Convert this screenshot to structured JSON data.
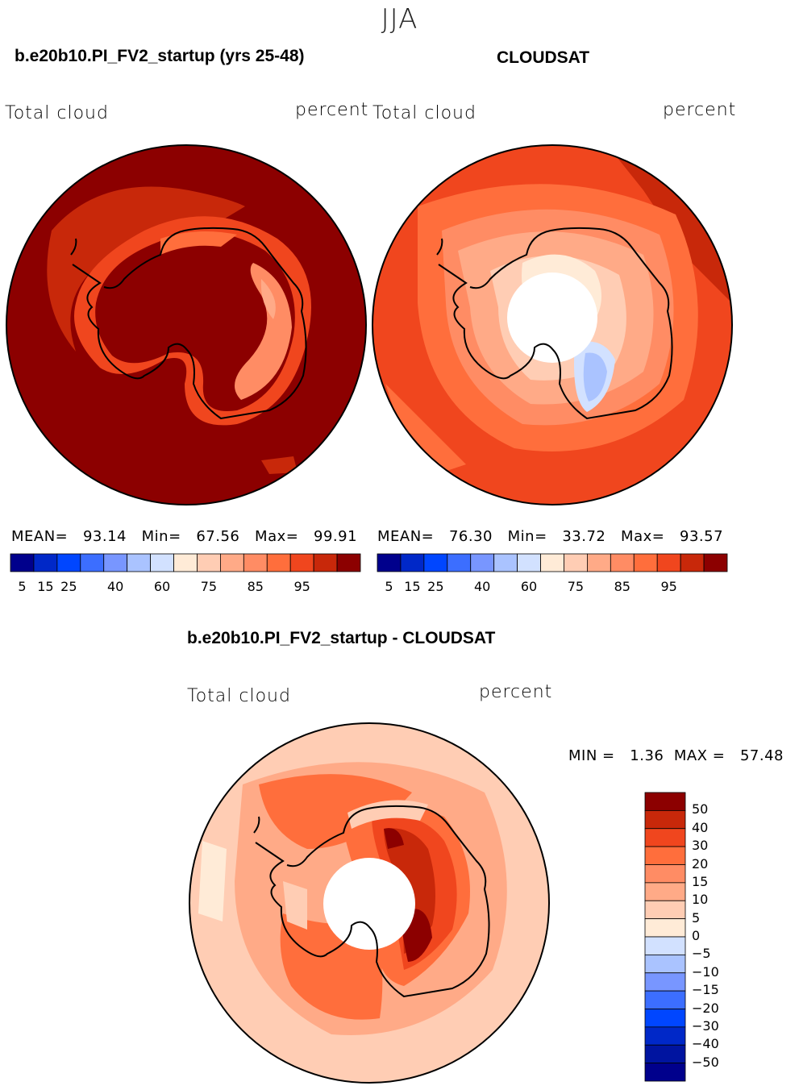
{
  "header": {
    "season": "JJA"
  },
  "chart_data": [
    {
      "type": "heatmap",
      "projection": "south-polar-stereographic",
      "case_title": "b.e20b10.PI_FV2_startup (yrs 25-48)",
      "left_label": "Total cloud",
      "right_label": "percent",
      "stats": {
        "mean_label": "MEAN=",
        "mean": "93.14",
        "min_label": "Min=",
        "min": "67.56",
        "max_label": "Max=",
        "max": "99.91"
      },
      "colorbar": {
        "colors": [
          "#00008c",
          "#0028c8",
          "#0046ff",
          "#3c6eff",
          "#7896ff",
          "#aac3ff",
          "#d2e1ff",
          "#ffebd7",
          "#ffcdb4",
          "#ffaa87",
          "#ff8c64",
          "#ff6e3c",
          "#f0461e",
          "#c8280a",
          "#8c0000"
        ],
        "tick_labels": [
          "5",
          "15",
          "25",
          "40",
          "60",
          "75",
          "85",
          "95"
        ]
      }
    },
    {
      "type": "heatmap",
      "projection": "south-polar-stereographic",
      "case_title": "CLOUDSAT",
      "left_label": "Total cloud",
      "right_label": "percent",
      "stats": {
        "mean_label": "MEAN=",
        "mean": "76.30",
        "min_label": "Min=",
        "min": "33.72",
        "max_label": "Max=",
        "max": "93.57"
      },
      "colorbar": {
        "colors": [
          "#00008c",
          "#0028c8",
          "#0046ff",
          "#3c6eff",
          "#7896ff",
          "#aac3ff",
          "#d2e1ff",
          "#ffebd7",
          "#ffcdb4",
          "#ffaa87",
          "#ff8c64",
          "#ff6e3c",
          "#f0461e",
          "#c8280a",
          "#8c0000"
        ],
        "tick_labels": [
          "5",
          "15",
          "25",
          "40",
          "60",
          "75",
          "85",
          "95"
        ]
      }
    },
    {
      "type": "heatmap",
      "projection": "south-polar-stereographic",
      "case_title": "b.e20b10.PI_FV2_startup - CLOUDSAT",
      "left_label": "Total cloud",
      "right_label": "percent",
      "stats": {
        "min_label": "MIN =",
        "min": "1.36",
        "max_label": "MAX =",
        "max": "57.48"
      },
      "colorbar": {
        "colors": [
          "#8c0000",
          "#c8280a",
          "#f0461e",
          "#ff6e3c",
          "#ff8c64",
          "#ffaa87",
          "#ffcdb4",
          "#ffebd7",
          "#d2e1ff",
          "#aac3ff",
          "#7896ff",
          "#3c6eff",
          "#0046ff",
          "#0028c8",
          "#0014a0",
          "#00008c"
        ],
        "tick_labels": [
          "50",
          "40",
          "30",
          "20",
          "15",
          "10",
          "5",
          "0",
          "−5",
          "−10",
          "−15",
          "−20",
          "−30",
          "−40",
          "−50"
        ]
      }
    }
  ]
}
